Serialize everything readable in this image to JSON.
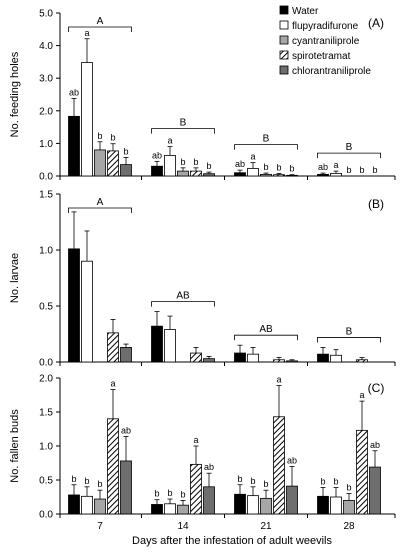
{
  "chart_data": {
    "type": "bar",
    "x_axis_label": "Days after the infestation of adult weevils",
    "categories": [
      "7",
      "14",
      "21",
      "28"
    ],
    "legend": {
      "placement": "top-right of panel A",
      "entries": [
        "Water",
        "flupyradifurone",
        "cyantraniliprole",
        "spirotetramat",
        "chlorantraniliprole"
      ]
    },
    "series_styles": [
      {
        "name": "Water",
        "fill": "#000000",
        "pattern": "solid"
      },
      {
        "name": "flupyradifurone",
        "fill": "#ffffff",
        "pattern": "solid"
      },
      {
        "name": "cyantraniliprole",
        "fill": "#a6a6a6",
        "pattern": "solid"
      },
      {
        "name": "spirotetramat",
        "fill": "#ffffff",
        "pattern": "diagonal-hatch"
      },
      {
        "name": "chlorantraniliprole",
        "fill": "#6e6e6e",
        "pattern": "solid"
      }
    ],
    "panels": [
      {
        "panel_label": "(A)",
        "ylabel": "No. feeding holes",
        "ylim": [
          0,
          5
        ],
        "yticks": [
          "0.0",
          "1.0",
          "2.0",
          "3.0",
          "4.0",
          "5.0"
        ],
        "series": [
          {
            "name": "Water",
            "values": [
              1.83,
              0.3,
              0.1,
              0.05
            ],
            "errors": [
              0.55,
              0.15,
              0.08,
              0.04
            ],
            "letters": [
              "ab",
              "ab",
              "ab",
              "ab"
            ]
          },
          {
            "name": "flupyradifurone",
            "values": [
              3.48,
              0.63,
              0.23,
              0.08
            ],
            "errors": [
              0.73,
              0.27,
              0.18,
              0.07
            ],
            "letters": [
              "a",
              "a",
              "a",
              "a"
            ]
          },
          {
            "name": "cyantraniliprole",
            "values": [
              0.8,
              0.15,
              0.05,
              0.0
            ],
            "errors": [
              0.25,
              0.1,
              0.04,
              0.0
            ],
            "letters": [
              "b",
              "b",
              "b",
              "b"
            ]
          },
          {
            "name": "spirotetramat",
            "values": [
              0.77,
              0.15,
              0.04,
              0.0
            ],
            "errors": [
              0.22,
              0.1,
              0.04,
              0.0
            ],
            "letters": [
              "b",
              "b",
              "b",
              "b"
            ]
          },
          {
            "name": "chlorantraniliprole",
            "values": [
              0.35,
              0.07,
              0.02,
              0.0
            ],
            "errors": [
              0.22,
              0.05,
              0.02,
              0.0
            ],
            "letters": [
              "b",
              "b",
              "b",
              "b"
            ]
          }
        ],
        "group_brackets": [
          {
            "category": "7",
            "label": "A"
          },
          {
            "category": "14",
            "label": "B"
          },
          {
            "category": "21",
            "label": "B"
          },
          {
            "category": "28",
            "label": "B"
          }
        ]
      },
      {
        "panel_label": "(B)",
        "ylabel": "No. larvae",
        "ylim": [
          0,
          1.5
        ],
        "yticks": [
          "0.0",
          "0.5",
          "1.0",
          "1.5"
        ],
        "series": [
          {
            "name": "Water",
            "values": [
              1.01,
              0.32,
              0.08,
              0.07
            ],
            "errors": [
              0.33,
              0.13,
              0.07,
              0.06
            ]
          },
          {
            "name": "flupyradifurone",
            "values": [
              0.9,
              0.29,
              0.07,
              0.06
            ],
            "errors": [
              0.27,
              0.12,
              0.06,
              0.05
            ]
          },
          {
            "name": "cyantraniliprole",
            "values": [
              0.0,
              0.0,
              0.0,
              0.0
            ],
            "errors": [
              0,
              0,
              0,
              0
            ]
          },
          {
            "name": "spirotetramat",
            "values": [
              0.26,
              0.08,
              0.02,
              0.02
            ],
            "errors": [
              0.12,
              0.05,
              0.02,
              0.02
            ]
          },
          {
            "name": "chlorantraniliprole",
            "values": [
              0.13,
              0.03,
              0.01,
              0.0
            ],
            "errors": [
              0.03,
              0.02,
              0.01,
              0.0
            ]
          }
        ],
        "group_brackets": [
          {
            "category": "7",
            "label": "A"
          },
          {
            "category": "14",
            "label": "AB"
          },
          {
            "category": "21",
            "label": "AB"
          },
          {
            "category": "28",
            "label": "B"
          }
        ]
      },
      {
        "panel_label": "(C)",
        "ylabel": "No. fallen buds",
        "ylim": [
          0,
          2
        ],
        "yticks": [
          "0.0",
          "0.5",
          "1.0",
          "1.5",
          "2.0"
        ],
        "series": [
          {
            "name": "Water",
            "values": [
              0.28,
              0.14,
              0.29,
              0.26
            ],
            "errors": [
              0.15,
              0.07,
              0.14,
              0.13
            ],
            "letters": [
              "b",
              "b",
              "b",
              "b"
            ]
          },
          {
            "name": "flupyradifurone",
            "values": [
              0.26,
              0.15,
              0.27,
              0.25
            ],
            "errors": [
              0.14,
              0.07,
              0.13,
              0.14
            ],
            "letters": [
              "b",
              "b",
              "b",
              "b"
            ]
          },
          {
            "name": "cyantraniliprole",
            "values": [
              0.22,
              0.13,
              0.23,
              0.2
            ],
            "errors": [
              0.13,
              0.07,
              0.12,
              0.1
            ],
            "letters": [
              "b",
              "b",
              "b",
              "b"
            ]
          },
          {
            "name": "spirotetramat",
            "values": [
              1.4,
              0.73,
              1.43,
              1.23
            ],
            "errors": [
              0.43,
              0.27,
              0.46,
              0.43
            ],
            "letters": [
              "a",
              "a",
              "a",
              "a"
            ]
          },
          {
            "name": "chlorantraniliprole",
            "values": [
              0.78,
              0.4,
              0.41,
              0.69
            ],
            "errors": [
              0.36,
              0.2,
              0.29,
              0.24
            ],
            "letters": [
              "ab",
              "ab",
              "ab",
              "ab"
            ]
          }
        ]
      }
    ]
  }
}
